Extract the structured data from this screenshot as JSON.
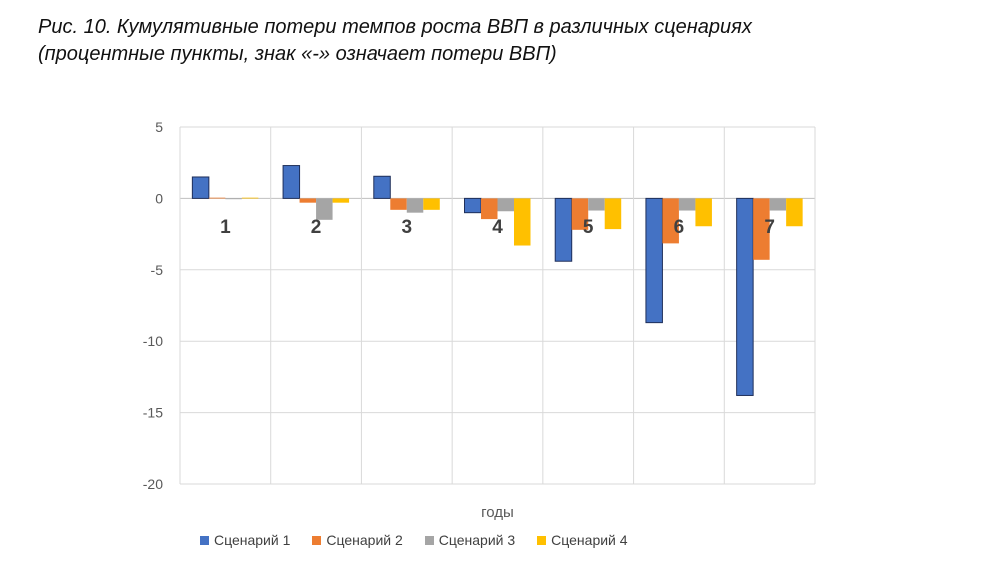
{
  "title_line1": "Рис. 10. Кумулятивные потери темпов роста ВВП в различных сценариях",
  "title_line2": "(процентные пункты, знак «-» означает потери ВВП)",
  "chart_data": {
    "type": "bar",
    "xlabel": "годы",
    "ylabel": "",
    "ylim": [
      -20,
      5
    ],
    "yticks": [
      5,
      0,
      -5,
      -10,
      -15,
      -20
    ],
    "ytick_labels": [
      "5",
      "0",
      "-5",
      "-10",
      "-15",
      "-20"
    ],
    "categories": [
      "1",
      "2",
      "3",
      "4",
      "5",
      "6",
      "7"
    ],
    "grid": true,
    "legend_position": "bottom",
    "series": [
      {
        "name": "Сценарий 1",
        "color": "#4472C4",
        "values": [
          1.5,
          2.3,
          1.55,
          -1.0,
          -4.4,
          -8.7,
          -13.8
        ]
      },
      {
        "name": "Сценарий 2",
        "color": "#ED7D31",
        "values": [
          0.05,
          -0.3,
          -0.8,
          -1.45,
          -2.2,
          -3.15,
          -4.3
        ]
      },
      {
        "name": "Сценарий 3",
        "color": "#A5A5A5",
        "values": [
          0,
          -1.5,
          -1.0,
          -0.9,
          -0.85,
          -0.85,
          -0.85
        ]
      },
      {
        "name": "Сценарий 4",
        "color": "#FFC000",
        "values": [
          0.05,
          -0.3,
          -0.8,
          -3.3,
          -2.15,
          -1.95,
          -1.95
        ]
      }
    ]
  }
}
